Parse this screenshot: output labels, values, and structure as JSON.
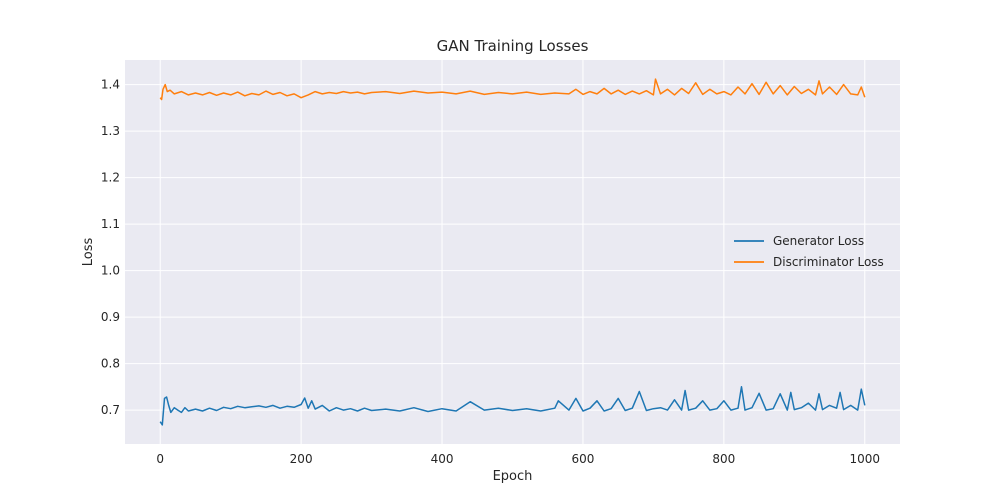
{
  "chart_data": {
    "type": "line",
    "title": "GAN Training Losses",
    "xlabel": "Epoch",
    "ylabel": "Loss",
    "xlim": [
      -50,
      1050
    ],
    "ylim": [
      0.627,
      1.453
    ],
    "xticks": [
      0,
      200,
      400,
      600,
      800,
      1000
    ],
    "yticks": [
      0.7,
      0.8,
      0.9,
      1.0,
      1.1,
      1.2,
      1.3,
      1.4
    ],
    "grid": true,
    "legend": "center-right",
    "series": [
      {
        "name": "Generator Loss",
        "color": "#1f77b4",
        "x": [
          0,
          3,
          6,
          9,
          12,
          15,
          20,
          25,
          30,
          35,
          40,
          50,
          60,
          70,
          80,
          90,
          100,
          110,
          120,
          130,
          140,
          150,
          160,
          170,
          180,
          190,
          200,
          205,
          210,
          215,
          220,
          230,
          240,
          250,
          260,
          270,
          280,
          290,
          300,
          320,
          340,
          360,
          380,
          400,
          420,
          440,
          460,
          480,
          500,
          520,
          540,
          560,
          565,
          580,
          590,
          600,
          610,
          620,
          630,
          640,
          650,
          660,
          670,
          680,
          690,
          700,
          710,
          720,
          730,
          740,
          745,
          750,
          760,
          770,
          780,
          790,
          800,
          810,
          820,
          825,
          830,
          840,
          850,
          860,
          870,
          880,
          890,
          895,
          900,
          910,
          920,
          930,
          935,
          940,
          950,
          960,
          965,
          970,
          980,
          990,
          995,
          1000
        ],
        "values": [
          0.675,
          0.668,
          0.725,
          0.728,
          0.71,
          0.695,
          0.705,
          0.7,
          0.695,
          0.705,
          0.698,
          0.702,
          0.698,
          0.704,
          0.699,
          0.706,
          0.703,
          0.708,
          0.705,
          0.707,
          0.709,
          0.706,
          0.71,
          0.704,
          0.708,
          0.706,
          0.712,
          0.726,
          0.704,
          0.72,
          0.702,
          0.71,
          0.698,
          0.705,
          0.7,
          0.703,
          0.698,
          0.704,
          0.699,
          0.702,
          0.698,
          0.705,
          0.697,
          0.703,
          0.698,
          0.718,
          0.7,
          0.704,
          0.699,
          0.703,
          0.698,
          0.704,
          0.72,
          0.7,
          0.725,
          0.698,
          0.704,
          0.72,
          0.698,
          0.703,
          0.725,
          0.699,
          0.704,
          0.74,
          0.699,
          0.703,
          0.705,
          0.7,
          0.722,
          0.7,
          0.742,
          0.7,
          0.704,
          0.72,
          0.7,
          0.703,
          0.72,
          0.7,
          0.704,
          0.75,
          0.7,
          0.705,
          0.736,
          0.7,
          0.703,
          0.735,
          0.7,
          0.738,
          0.701,
          0.705,
          0.715,
          0.7,
          0.735,
          0.701,
          0.71,
          0.704,
          0.738,
          0.701,
          0.71,
          0.7,
          0.745,
          0.71
        ]
      },
      {
        "name": "Discriminator Loss",
        "color": "#ff7f0e",
        "x": [
          0,
          2,
          4,
          7,
          10,
          14,
          20,
          30,
          40,
          50,
          60,
          70,
          80,
          90,
          100,
          110,
          120,
          130,
          140,
          150,
          160,
          170,
          180,
          190,
          200,
          210,
          220,
          230,
          240,
          250,
          260,
          270,
          280,
          290,
          300,
          320,
          340,
          360,
          380,
          400,
          420,
          440,
          460,
          480,
          500,
          520,
          540,
          560,
          580,
          590,
          600,
          610,
          620,
          630,
          640,
          650,
          660,
          670,
          680,
          690,
          700,
          703,
          710,
          720,
          730,
          740,
          750,
          760,
          770,
          780,
          790,
          800,
          810,
          820,
          830,
          840,
          850,
          860,
          870,
          880,
          890,
          900,
          910,
          920,
          930,
          935,
          940,
          950,
          960,
          970,
          980,
          990,
          995,
          1000
        ],
        "values": [
          1.372,
          1.368,
          1.39,
          1.4,
          1.385,
          1.388,
          1.38,
          1.385,
          1.378,
          1.382,
          1.378,
          1.383,
          1.377,
          1.382,
          1.378,
          1.384,
          1.376,
          1.381,
          1.378,
          1.386,
          1.379,
          1.383,
          1.376,
          1.38,
          1.372,
          1.378,
          1.385,
          1.38,
          1.383,
          1.381,
          1.385,
          1.382,
          1.384,
          1.38,
          1.383,
          1.385,
          1.381,
          1.386,
          1.382,
          1.384,
          1.38,
          1.386,
          1.379,
          1.383,
          1.38,
          1.384,
          1.379,
          1.382,
          1.38,
          1.39,
          1.379,
          1.385,
          1.38,
          1.392,
          1.38,
          1.388,
          1.379,
          1.386,
          1.38,
          1.387,
          1.378,
          1.412,
          1.38,
          1.39,
          1.378,
          1.392,
          1.381,
          1.404,
          1.379,
          1.39,
          1.38,
          1.385,
          1.378,
          1.395,
          1.38,
          1.402,
          1.379,
          1.405,
          1.38,
          1.398,
          1.378,
          1.396,
          1.381,
          1.39,
          1.378,
          1.408,
          1.38,
          1.395,
          1.379,
          1.4,
          1.38,
          1.378,
          1.395,
          1.373
        ]
      }
    ]
  }
}
